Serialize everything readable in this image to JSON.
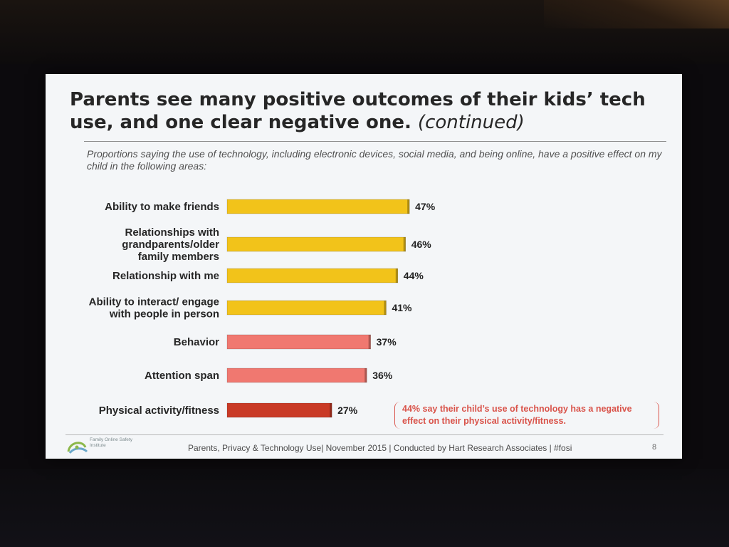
{
  "slide": {
    "title": "Parents see many positive outcomes of their kids’ tech use, and one clear negative one.",
    "title_suffix": "(continued)",
    "subtitle": "Proportions saying the use of technology, including electronic devices, social media, and being online, have a positive effect on my child in the following areas:",
    "note": "44% say their child’s use of technology has a negative effect on their physical activity/fitness.",
    "logo_text": "Family Online Safety Institute",
    "footer": "Parents, Privacy & Technology Use| November 2015 | Conducted by Hart Research Associates | #fosi",
    "page_number": "8"
  },
  "colors": {
    "yellow": "#f2c31a",
    "pink": "#f07870",
    "red": "#c93a26",
    "note_red": "#d9534a",
    "logo_green": "#8cb84a",
    "logo_blue": "#6aa8c9"
  },
  "chart_data": {
    "type": "bar",
    "orientation": "horizontal",
    "unit": "%",
    "categories": [
      [
        "Ability to make friends"
      ],
      [
        "Relationships with",
        "grandparents/older",
        "family members"
      ],
      [
        "Relationship with me"
      ],
      [
        "Ability to interact/ engage",
        "with people in person"
      ],
      [
        "Behavior"
      ],
      [
        "Attention span"
      ],
      [
        "Physical activity/fitness"
      ]
    ],
    "values": [
      47,
      46,
      44,
      41,
      37,
      36,
      27
    ],
    "value_labels": [
      "47%",
      "46%",
      "44%",
      "41%",
      "37%",
      "36%",
      "27%"
    ],
    "bar_colors": [
      "yellow",
      "yellow",
      "yellow",
      "yellow",
      "pink",
      "pink",
      "red"
    ],
    "xlim": [
      0,
      100
    ]
  }
}
